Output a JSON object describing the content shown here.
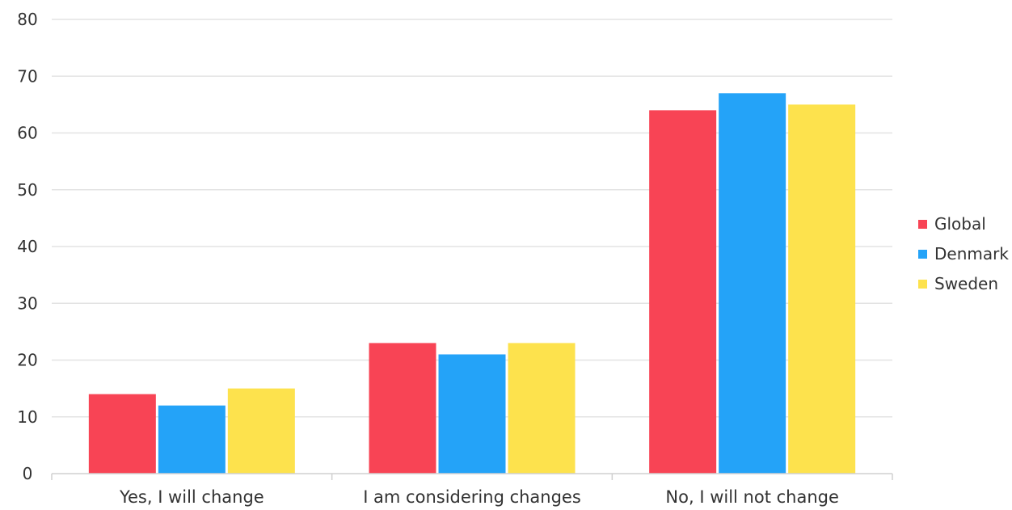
{
  "chart_data": {
    "type": "bar",
    "title": "",
    "xlabel": "",
    "ylabel": "",
    "categories": [
      "Yes, I will change",
      "I am considering changes",
      "No, I will not change"
    ],
    "series": [
      {
        "name": "Global",
        "color": "#f84455",
        "values": [
          14,
          23,
          64
        ]
      },
      {
        "name": "Denmark",
        "color": "#24a3f8",
        "values": [
          12,
          21,
          67
        ]
      },
      {
        "name": "Sweden",
        "color": "#fde24d",
        "values": [
          15,
          23,
          65
        ]
      }
    ],
    "ylim": [
      0,
      80
    ],
    "yticks": [
      0,
      10,
      20,
      30,
      40,
      50,
      60,
      70,
      80
    ],
    "grid": true,
    "legend_position": "right",
    "gridline_color": "#e3e3e3",
    "axis_color": "#d0d0d0"
  }
}
